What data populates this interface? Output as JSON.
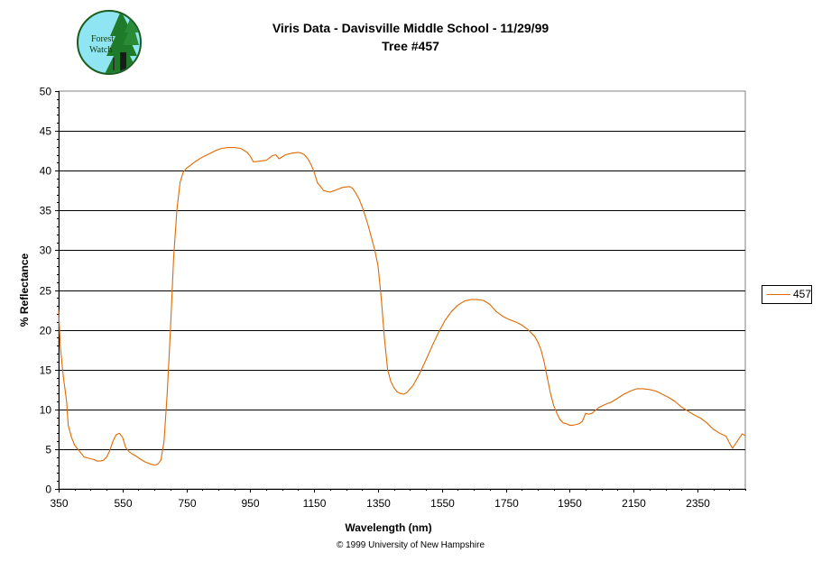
{
  "logo": {
    "line1": "Forest",
    "line2": "Watch"
  },
  "footer": "© 1999 University of New Hampshire",
  "colors": {
    "series": "#e06a00",
    "grid": "#000000",
    "plot_bg": "#ffffff"
  },
  "chart_data": {
    "type": "line",
    "title": "Viris Data - Davisville Middle School - 11/29/99",
    "subtitle": "Tree #457",
    "xlabel": "Wavelength (nm)",
    "ylabel": "% Reflectance",
    "xlim": [
      350,
      2500
    ],
    "ylim": [
      0,
      50
    ],
    "xticks": [
      350,
      550,
      750,
      950,
      1150,
      1350,
      1550,
      1750,
      1950,
      2150,
      2350
    ],
    "yticks": [
      0,
      5,
      10,
      15,
      20,
      25,
      30,
      35,
      40,
      45,
      50
    ],
    "grid": "horizontal",
    "legend_position": "right",
    "series": [
      {
        "name": "457",
        "x": [
          350,
          355,
          360,
          365,
          370,
          375,
          380,
          390,
          400,
          410,
          420,
          430,
          440,
          450,
          460,
          470,
          480,
          490,
          500,
          510,
          520,
          530,
          540,
          550,
          560,
          570,
          580,
          590,
          600,
          620,
          640,
          650,
          660,
          670,
          680,
          690,
          700,
          710,
          720,
          730,
          740,
          750,
          760,
          780,
          800,
          820,
          840,
          860,
          880,
          900,
          920,
          940,
          950,
          960,
          980,
          1000,
          1010,
          1020,
          1030,
          1040,
          1060,
          1080,
          1100,
          1110,
          1120,
          1130,
          1140,
          1150,
          1160,
          1180,
          1200,
          1220,
          1240,
          1260,
          1270,
          1280,
          1290,
          1300,
          1310,
          1320,
          1340,
          1350,
          1360,
          1370,
          1380,
          1390,
          1400,
          1410,
          1420,
          1430,
          1440,
          1460,
          1480,
          1500,
          1520,
          1540,
          1560,
          1580,
          1600,
          1620,
          1640,
          1660,
          1680,
          1700,
          1720,
          1740,
          1760,
          1780,
          1800,
          1820,
          1840,
          1850,
          1860,
          1870,
          1880,
          1890,
          1900,
          1910,
          1920,
          1930,
          1940,
          1950,
          1960,
          1970,
          1980,
          1990,
          2000,
          2010,
          2020,
          2040,
          2060,
          2080,
          2100,
          2120,
          2140,
          2160,
          2180,
          2200,
          2220,
          2240,
          2260,
          2280,
          2300,
          2320,
          2340,
          2360,
          2380,
          2400,
          2420,
          2440,
          2450,
          2460,
          2470,
          2480,
          2490,
          2500
        ],
        "y": [
          22.5,
          18,
          16,
          14,
          12.5,
          11,
          8,
          6.5,
          5.5,
          5,
          4.5,
          4,
          3.9,
          3.8,
          3.7,
          3.5,
          3.5,
          3.6,
          4,
          4.8,
          6,
          6.8,
          7,
          6.5,
          5.2,
          4.7,
          4.4,
          4.2,
          3.9,
          3.4,
          3.1,
          3.0,
          3.1,
          3.6,
          6,
          12,
          20,
          29,
          35,
          38.5,
          39.8,
          40.3,
          40.6,
          41.2,
          41.7,
          42.1,
          42.5,
          42.8,
          42.9,
          42.9,
          42.8,
          42.3,
          41.8,
          41.1,
          41.2,
          41.3,
          41.6,
          41.9,
          42.0,
          41.5,
          42.0,
          42.2,
          42.3,
          42.2,
          42.0,
          41.5,
          40.8,
          39.8,
          38.5,
          37.5,
          37.3,
          37.6,
          37.9,
          38.0,
          37.8,
          37.2,
          36.5,
          35.5,
          34.3,
          33,
          30,
          28,
          24,
          19,
          15,
          13.5,
          12.7,
          12.2,
          12.0,
          11.9,
          12.1,
          13,
          14.5,
          16.2,
          18,
          19.7,
          21.2,
          22.3,
          23.1,
          23.6,
          23.8,
          23.8,
          23.7,
          23.2,
          22.3,
          21.7,
          21.3,
          21.0,
          20.6,
          20.0,
          19.2,
          18.5,
          17.5,
          16.0,
          14.0,
          12.0,
          10.5,
          9.5,
          8.7,
          8.3,
          8.2,
          8.0,
          8.0,
          8.1,
          8.2,
          8.5,
          9.5,
          9.4,
          9.5,
          10.2,
          10.6,
          10.9,
          11.4,
          11.9,
          12.3,
          12.6,
          12.6,
          12.5,
          12.3,
          11.9,
          11.5,
          11.0,
          10.3,
          9.8,
          9.3,
          8.9,
          8.3,
          7.5,
          7.0,
          6.6,
          5.8,
          5.1,
          5.7,
          6.3,
          6.9,
          6.7
        ]
      }
    ]
  }
}
